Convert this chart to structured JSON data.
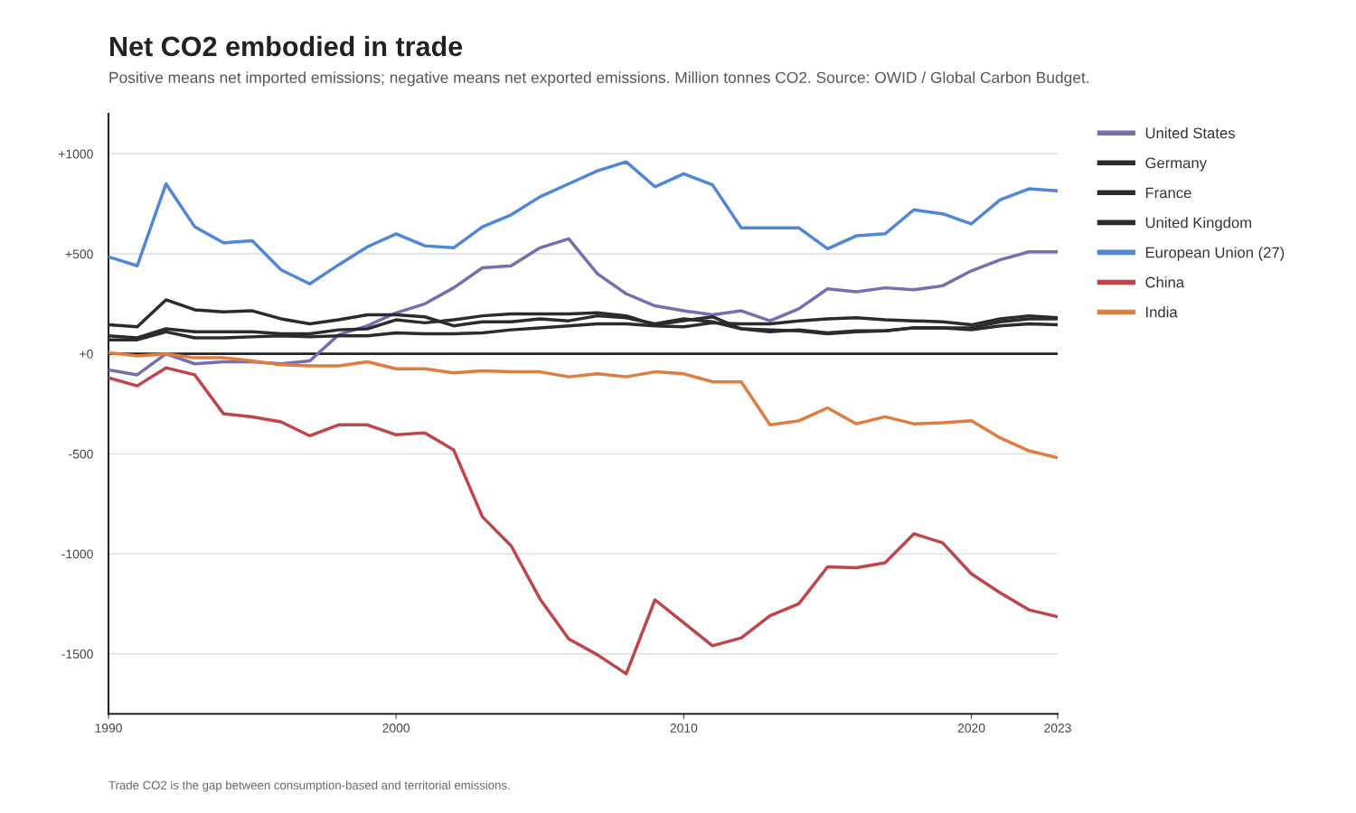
{
  "chart_data": {
    "type": "line",
    "title": "Net CO2 embodied in trade",
    "subtitle": "Positive means net imported emissions; negative means net exported emissions. Million tonnes CO2. Source: OWID / Global Carbon Budget.",
    "annotations": [
      "Trade CO2 is the gap between consumption-based and territorial emissions."
    ],
    "x": [
      1990,
      1991,
      1992,
      1993,
      1994,
      1995,
      1996,
      1997,
      1998,
      1999,
      2000,
      2001,
      2002,
      2003,
      2004,
      2005,
      2006,
      2007,
      2008,
      2009,
      2010,
      2011,
      2012,
      2013,
      2014,
      2015,
      2016,
      2017,
      2018,
      2019,
      2020,
      2021,
      2022,
      2023
    ],
    "series": [
      {
        "name": "United States",
        "color": "#7b6bb0",
        "values": [
          -80,
          -105,
          0,
          -50,
          -40,
          -40,
          -50,
          -35,
          95,
          140,
          205,
          250,
          330,
          430,
          440,
          530,
          575,
          400,
          300,
          240,
          215,
          195,
          215,
          165,
          225,
          325,
          310,
          330,
          320,
          340,
          415,
          470,
          510,
          510
        ]
      },
      {
        "name": "Germany",
        "color": "#2b2b2b",
        "values": [
          145,
          135,
          270,
          220,
          210,
          215,
          175,
          150,
          170,
          195,
          195,
          185,
          140,
          160,
          160,
          175,
          165,
          190,
          180,
          150,
          175,
          160,
          125,
          120,
          115,
          100,
          110,
          115,
          130,
          130,
          120,
          140,
          150,
          145
        ]
      },
      {
        "name": "France",
        "color": "#2b2b2b",
        "values": [
          90,
          80,
          125,
          110,
          110,
          110,
          100,
          100,
          120,
          125,
          170,
          155,
          170,
          190,
          200,
          200,
          200,
          205,
          190,
          145,
          165,
          185,
          125,
          110,
          120,
          105,
          115,
          115,
          130,
          130,
          130,
          160,
          175,
          175
        ]
      },
      {
        "name": "United Kingdom",
        "color": "#2b2b2b",
        "values": [
          70,
          70,
          110,
          80,
          80,
          85,
          90,
          85,
          90,
          90,
          105,
          100,
          100,
          105,
          120,
          130,
          140,
          150,
          150,
          140,
          135,
          155,
          150,
          150,
          165,
          175,
          180,
          170,
          165,
          160,
          145,
          175,
          190,
          180
        ]
      },
      {
        "name": "European Union (27)",
        "color": "#4f86d6",
        "values": [
          485,
          440,
          850,
          635,
          555,
          565,
          420,
          350,
          445,
          535,
          600,
          540,
          530,
          635,
          695,
          785,
          850,
          915,
          960,
          835,
          900,
          845,
          630,
          630,
          630,
          525,
          590,
          600,
          720,
          700,
          650,
          770,
          825,
          815
        ]
      },
      {
        "name": "China",
        "color": "#c0454a",
        "values": [
          -120,
          -160,
          -70,
          -105,
          -300,
          -315,
          -340,
          -410,
          -355,
          -355,
          -405,
          -395,
          -480,
          -815,
          -960,
          -1225,
          -1425,
          -1505,
          -1600,
          -1230,
          -1345,
          -1460,
          -1420,
          -1310,
          -1250,
          -1065,
          -1070,
          -1045,
          -900,
          -945,
          -1100,
          -1195,
          -1280,
          -1315
        ]
      },
      {
        "name": "India",
        "color": "#e07c3e",
        "values": [
          5,
          -10,
          0,
          -20,
          -20,
          -35,
          -55,
          -60,
          -60,
          -40,
          -75,
          -75,
          -95,
          -85,
          -90,
          -90,
          -115,
          -100,
          -115,
          -90,
          -100,
          -140,
          -140,
          -355,
          -335,
          -270,
          -350,
          -315,
          -350,
          -345,
          -335,
          -420,
          -485,
          -520
        ]
      }
    ],
    "xlim": [
      1990,
      2023
    ],
    "xticks": [
      1990,
      2000,
      2010,
      2020,
      2023
    ],
    "ylim": [
      -1800,
      1200
    ],
    "yticks": [
      {
        "value": -1500,
        "label": "-1500"
      },
      {
        "value": -1000,
        "label": "-1000"
      },
      {
        "value": -500,
        "label": "-500"
      },
      {
        "value": 0,
        "label": "+0"
      },
      {
        "value": 500,
        "label": "+500"
      },
      {
        "value": 1000,
        "label": "+1000"
      }
    ],
    "ref_lines": [
      {
        "axis": "y",
        "value": 0,
        "color": "#222222"
      }
    ],
    "grid": "y",
    "legend": "right",
    "marker": "none",
    "line_style": "solid"
  }
}
